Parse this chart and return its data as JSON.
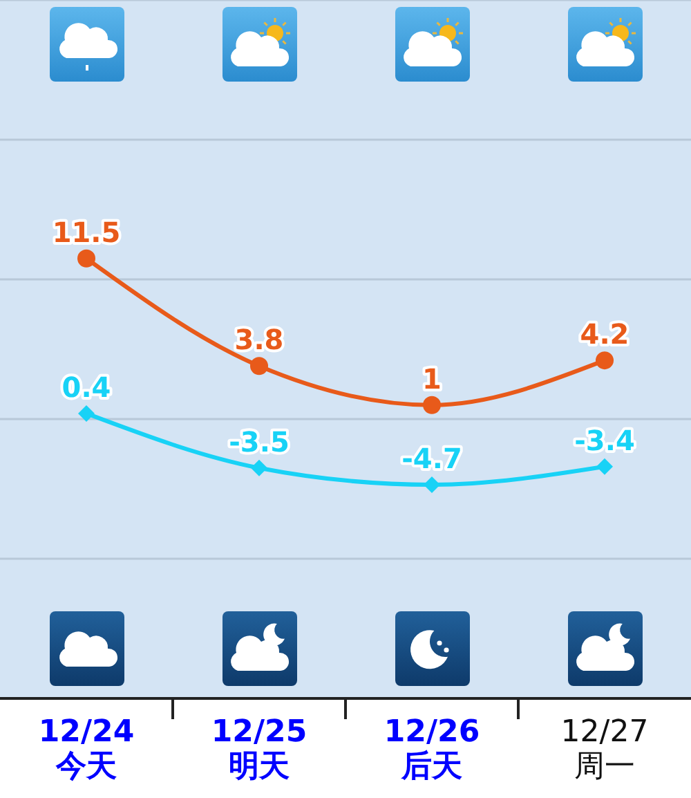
{
  "chart_data": {
    "type": "line",
    "categories": [
      "12/24 今天",
      "12/25 明天",
      "12/26 后天",
      "12/27 周一"
    ],
    "series": [
      {
        "color": "#e85a1a",
        "marker": "circle",
        "values": [
          11.5,
          3.8,
          1,
          4.2
        ]
      },
      {
        "color": "#18d2f6",
        "marker": "diamond",
        "values": [
          0.4,
          -3.5,
          -4.7,
          -3.4
        ]
      }
    ],
    "ylim": [
      -20,
      30
    ],
    "grid": "y",
    "tick_labels": "x",
    "data_labels": true
  }
}
